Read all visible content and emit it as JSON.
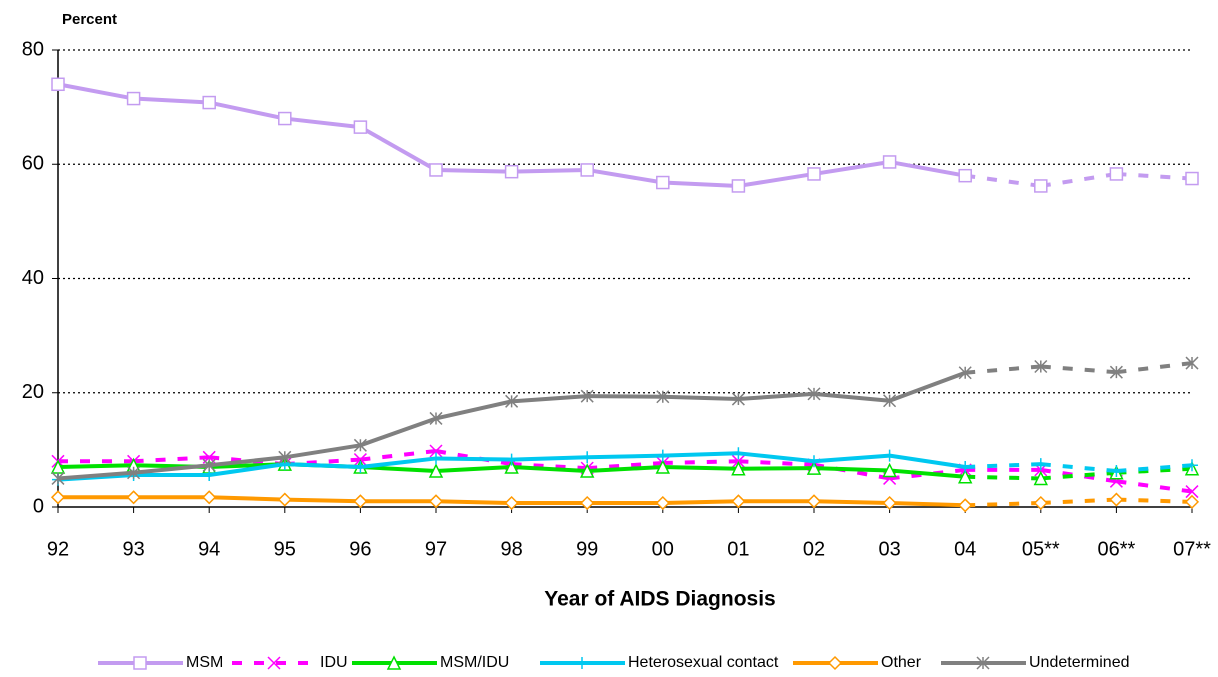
{
  "chart_data": {
    "type": "line",
    "y_label": "Percent",
    "x_label": "Year of AIDS Diagnosis",
    "categories": [
      "92",
      "93",
      "94",
      "95",
      "96",
      "97",
      "98",
      "99",
      "00",
      "01",
      "02",
      "03",
      "04",
      "05**",
      "06**",
      "07**"
    ],
    "ylim": [
      0,
      80
    ],
    "yticks": [
      0,
      20,
      40,
      60,
      80
    ],
    "grid": true,
    "dash_start_index": 12,
    "series": [
      {
        "name": "MSM",
        "color": "#c39bf0",
        "marker": "square",
        "values": [
          74,
          71.5,
          70.8,
          68,
          66.5,
          59,
          58.7,
          59,
          56.8,
          56.2,
          58.3,
          60.4,
          58,
          56.2,
          58.3,
          57.5
        ]
      },
      {
        "name": "IDU",
        "color": "#ff00ff",
        "marker": "x",
        "dashed": true,
        "values": [
          8,
          8,
          8.7,
          7.5,
          8.3,
          9.8,
          7.5,
          6.8,
          7.7,
          8,
          7.4,
          5,
          6.5,
          6.5,
          4.5,
          2.7
        ]
      },
      {
        "name": "MSM/IDU",
        "color": "#00e000",
        "marker": "triangle",
        "values": [
          7,
          7.3,
          7,
          7.5,
          7,
          6.3,
          7,
          6.3,
          7,
          6.7,
          6.8,
          6.4,
          5.3,
          5,
          6,
          6.7
        ]
      },
      {
        "name": "Heterosexual contact",
        "color": "#00c8f0",
        "marker": "plus",
        "values": [
          4.8,
          5.6,
          5.6,
          7.5,
          7,
          8.5,
          8.3,
          8.7,
          9,
          9.4,
          8,
          9,
          7,
          7.5,
          6.3,
          7.3
        ]
      },
      {
        "name": "Other",
        "color": "#ff9900",
        "marker": "diamond",
        "values": [
          1.7,
          1.7,
          1.7,
          1.3,
          1,
          1,
          0.7,
          0.7,
          0.7,
          1,
          1,
          0.7,
          0.3,
          0.7,
          1.3,
          0.9
        ]
      },
      {
        "name": "Undetermined",
        "color": "#808080",
        "marker": "asterisk",
        "values": [
          5,
          6,
          7.3,
          8.7,
          10.8,
          15.5,
          18.5,
          19.4,
          19.3,
          18.9,
          19.8,
          18.6,
          23.5,
          24.6,
          23.6,
          25.2
        ]
      }
    ]
  }
}
